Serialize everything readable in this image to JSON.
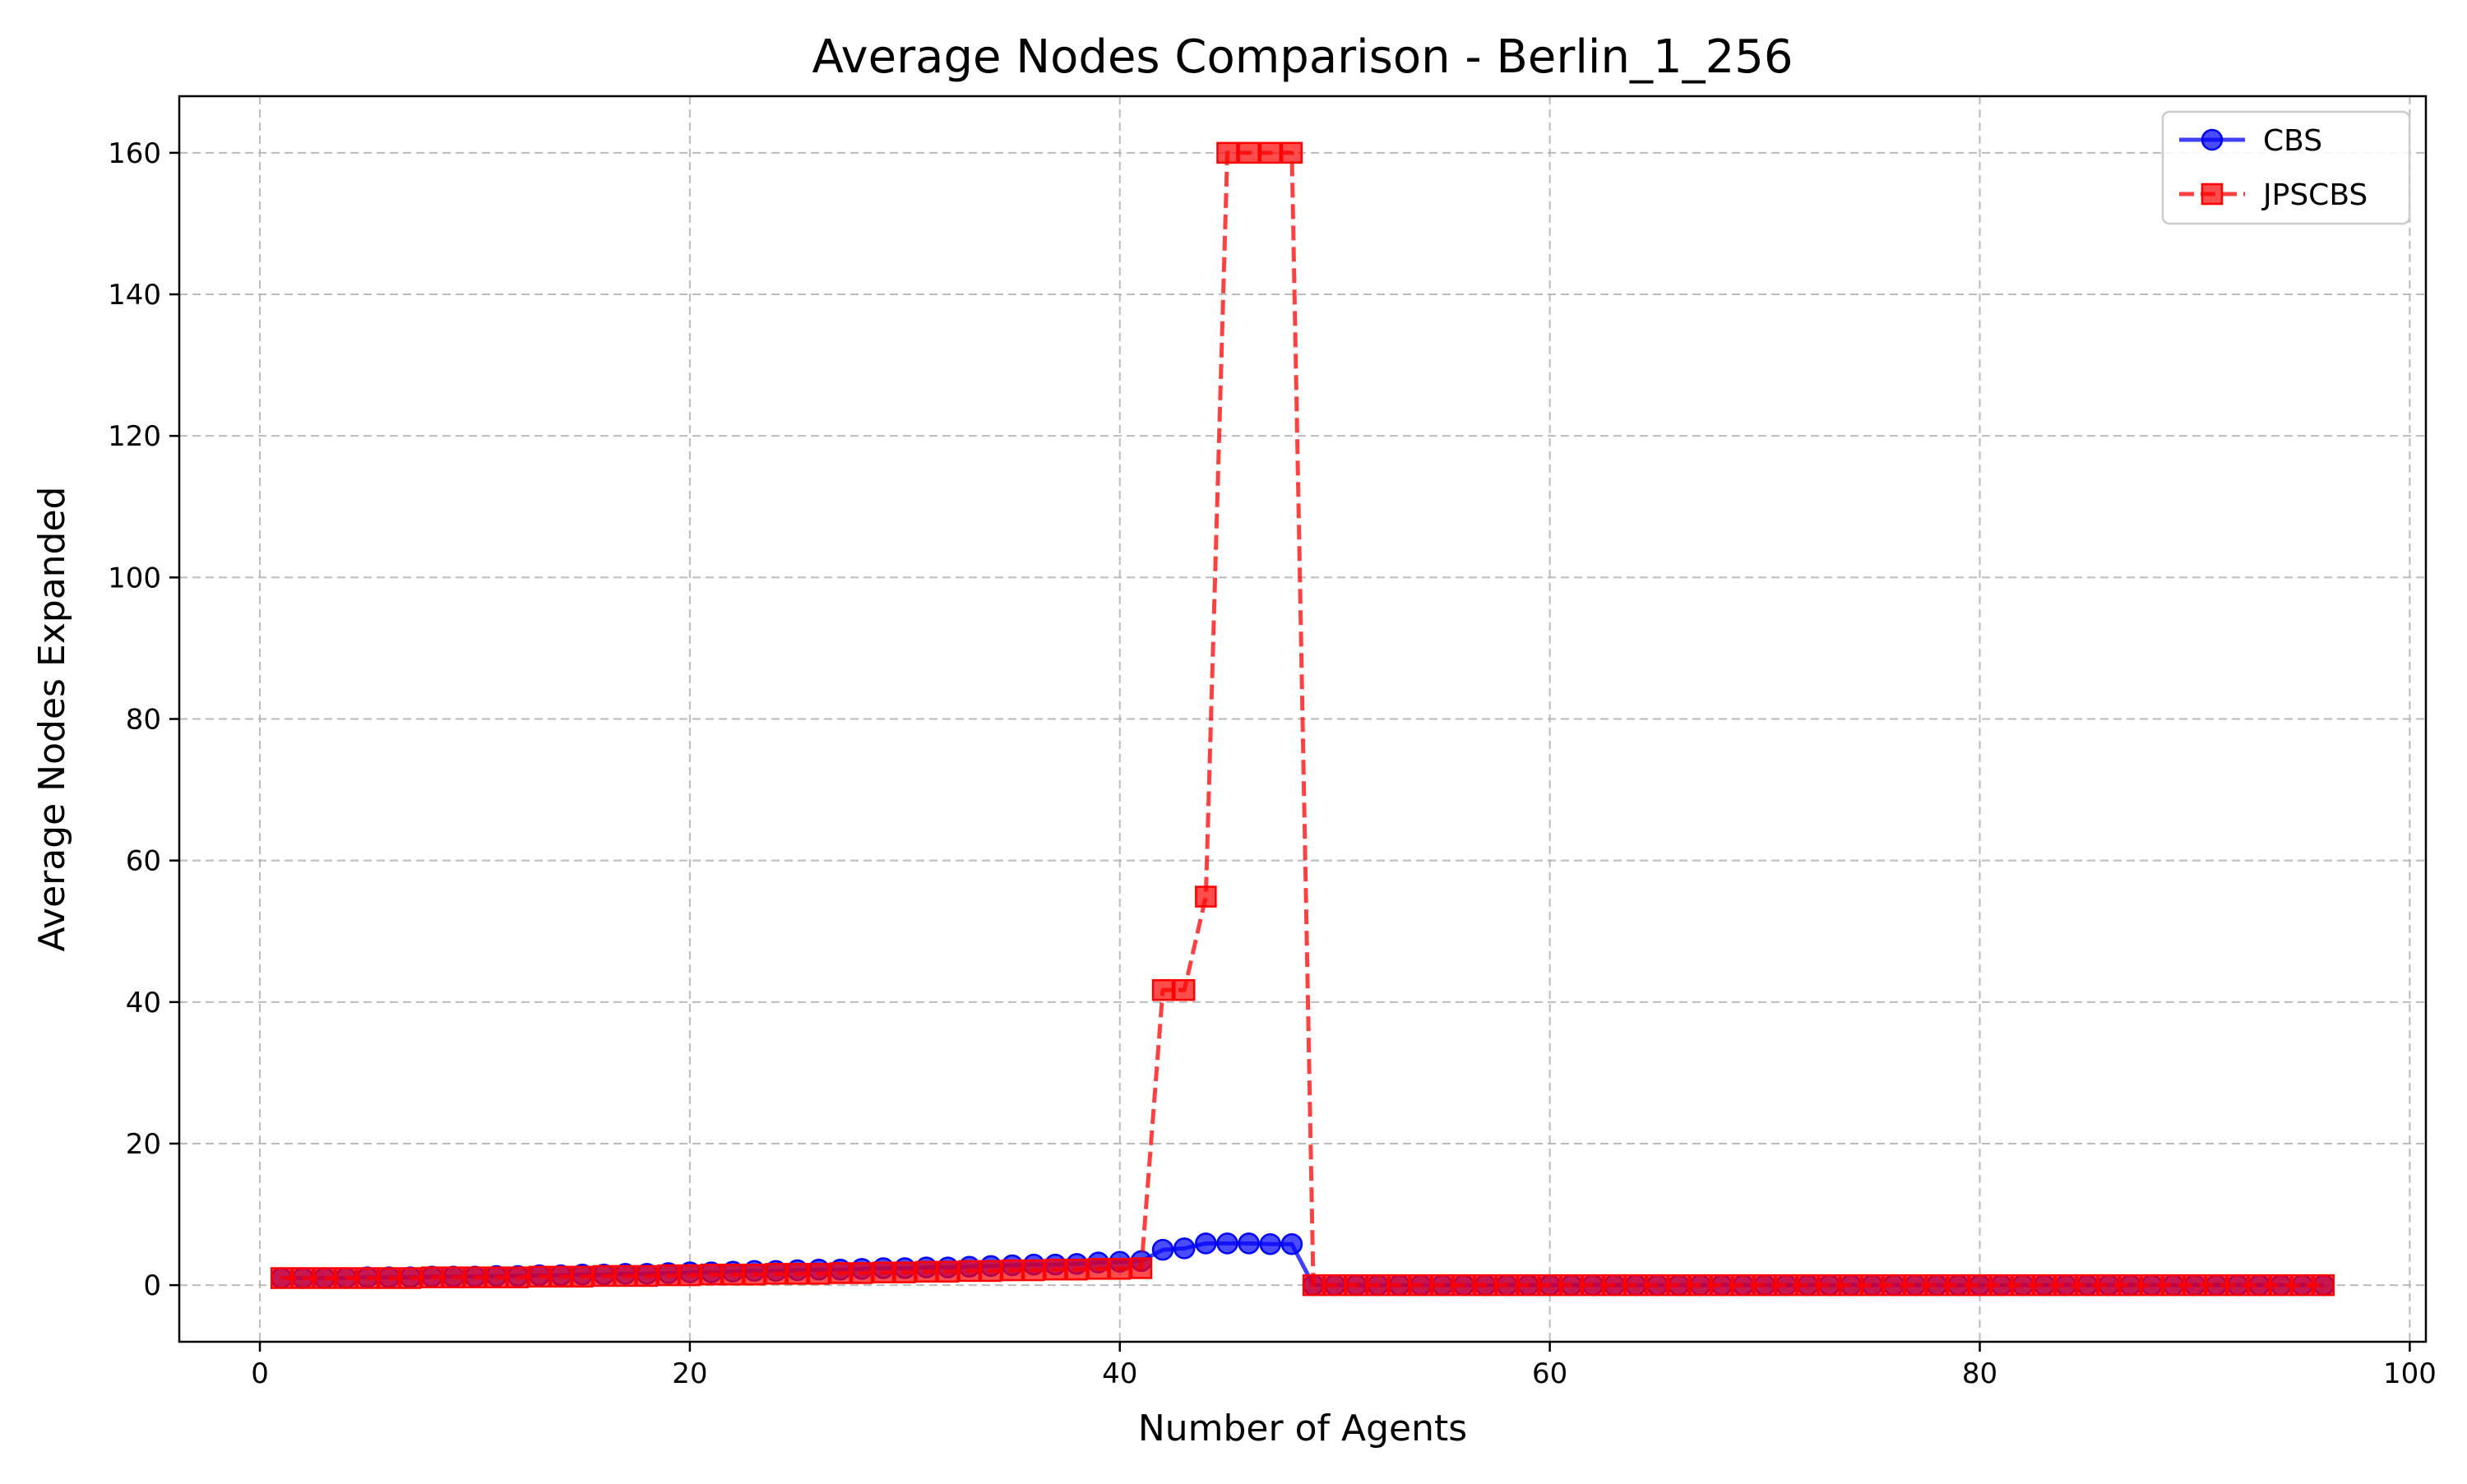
{
  "chart_data": {
    "type": "line",
    "title": "Average Nodes Comparison - Berlin_1_256",
    "xlabel": "Number of Agents",
    "ylabel": "Average Nodes Expanded",
    "xlim": [
      -3.75,
      100.75
    ],
    "ylim": [
      -8,
      168
    ],
    "xticks": [
      0,
      20,
      40,
      60,
      80,
      100
    ],
    "yticks": [
      0,
      20,
      40,
      60,
      80,
      100,
      120,
      140,
      160
    ],
    "grid": true,
    "legend_position": "top-right",
    "x": [
      1,
      2,
      3,
      4,
      5,
      6,
      7,
      8,
      9,
      10,
      11,
      12,
      13,
      14,
      15,
      16,
      17,
      18,
      19,
      20,
      21,
      22,
      23,
      24,
      25,
      26,
      27,
      28,
      29,
      30,
      31,
      32,
      33,
      34,
      35,
      36,
      37,
      38,
      39,
      40,
      41,
      42,
      43,
      44,
      45,
      46,
      47,
      48,
      49,
      50,
      51,
      52,
      53,
      54,
      55,
      56,
      57,
      58,
      59,
      60,
      61,
      62,
      63,
      64,
      65,
      66,
      67,
      68,
      69,
      70,
      71,
      72,
      73,
      74,
      75,
      76,
      77,
      78,
      79,
      80,
      81,
      82,
      83,
      84,
      85,
      86,
      87,
      88,
      89,
      90,
      91,
      92,
      93,
      94,
      95,
      96
    ],
    "series": [
      {
        "name": "CBS",
        "color": "#0000ff",
        "line_style": "solid",
        "marker": "circle",
        "values": [
          1.0,
          1.0,
          1.0,
          1.0,
          1.1,
          1.1,
          1.1,
          1.2,
          1.2,
          1.2,
          1.3,
          1.3,
          1.4,
          1.4,
          1.5,
          1.5,
          1.6,
          1.6,
          1.7,
          1.8,
          1.8,
          1.9,
          2.0,
          2.0,
          2.1,
          2.2,
          2.2,
          2.3,
          2.4,
          2.4,
          2.5,
          2.5,
          2.6,
          2.7,
          2.8,
          2.9,
          2.9,
          3.0,
          3.2,
          3.3,
          3.4,
          5.0,
          5.2,
          5.9,
          5.9,
          5.9,
          5.8,
          5.8,
          0,
          0,
          0,
          0,
          0,
          0,
          0,
          0,
          0,
          0,
          0,
          0,
          0,
          0,
          0,
          0,
          0,
          0,
          0,
          0,
          0,
          0,
          0,
          0,
          0,
          0,
          0,
          0,
          0,
          0,
          0,
          0,
          0,
          0,
          0,
          0,
          0,
          0,
          0,
          0,
          0,
          0,
          0,
          0,
          0,
          0,
          0,
          0
        ]
      },
      {
        "name": "JPSCBS",
        "color": "#ff0000",
        "line_style": "dashed",
        "marker": "square",
        "values": [
          1.0,
          1.0,
          1.0,
          1.0,
          1.0,
          1.0,
          1.0,
          1.1,
          1.1,
          1.1,
          1.1,
          1.1,
          1.2,
          1.2,
          1.2,
          1.3,
          1.3,
          1.3,
          1.4,
          1.4,
          1.5,
          1.5,
          1.5,
          1.6,
          1.6,
          1.6,
          1.7,
          1.7,
          1.8,
          1.8,
          1.9,
          1.9,
          2.0,
          2.0,
          2.1,
          2.1,
          2.2,
          2.2,
          2.3,
          2.3,
          2.4,
          41.7,
          41.7,
          54.9,
          160,
          160,
          160,
          160,
          0,
          0,
          0,
          0,
          0,
          0,
          0,
          0,
          0,
          0,
          0,
          0,
          0,
          0,
          0,
          0,
          0,
          0,
          0,
          0,
          0,
          0,
          0,
          0,
          0,
          0,
          0,
          0,
          0,
          0,
          0,
          0,
          0,
          0,
          0,
          0,
          0,
          0,
          0,
          0,
          0,
          0,
          0,
          0,
          0,
          0,
          0,
          0
        ]
      }
    ]
  }
}
